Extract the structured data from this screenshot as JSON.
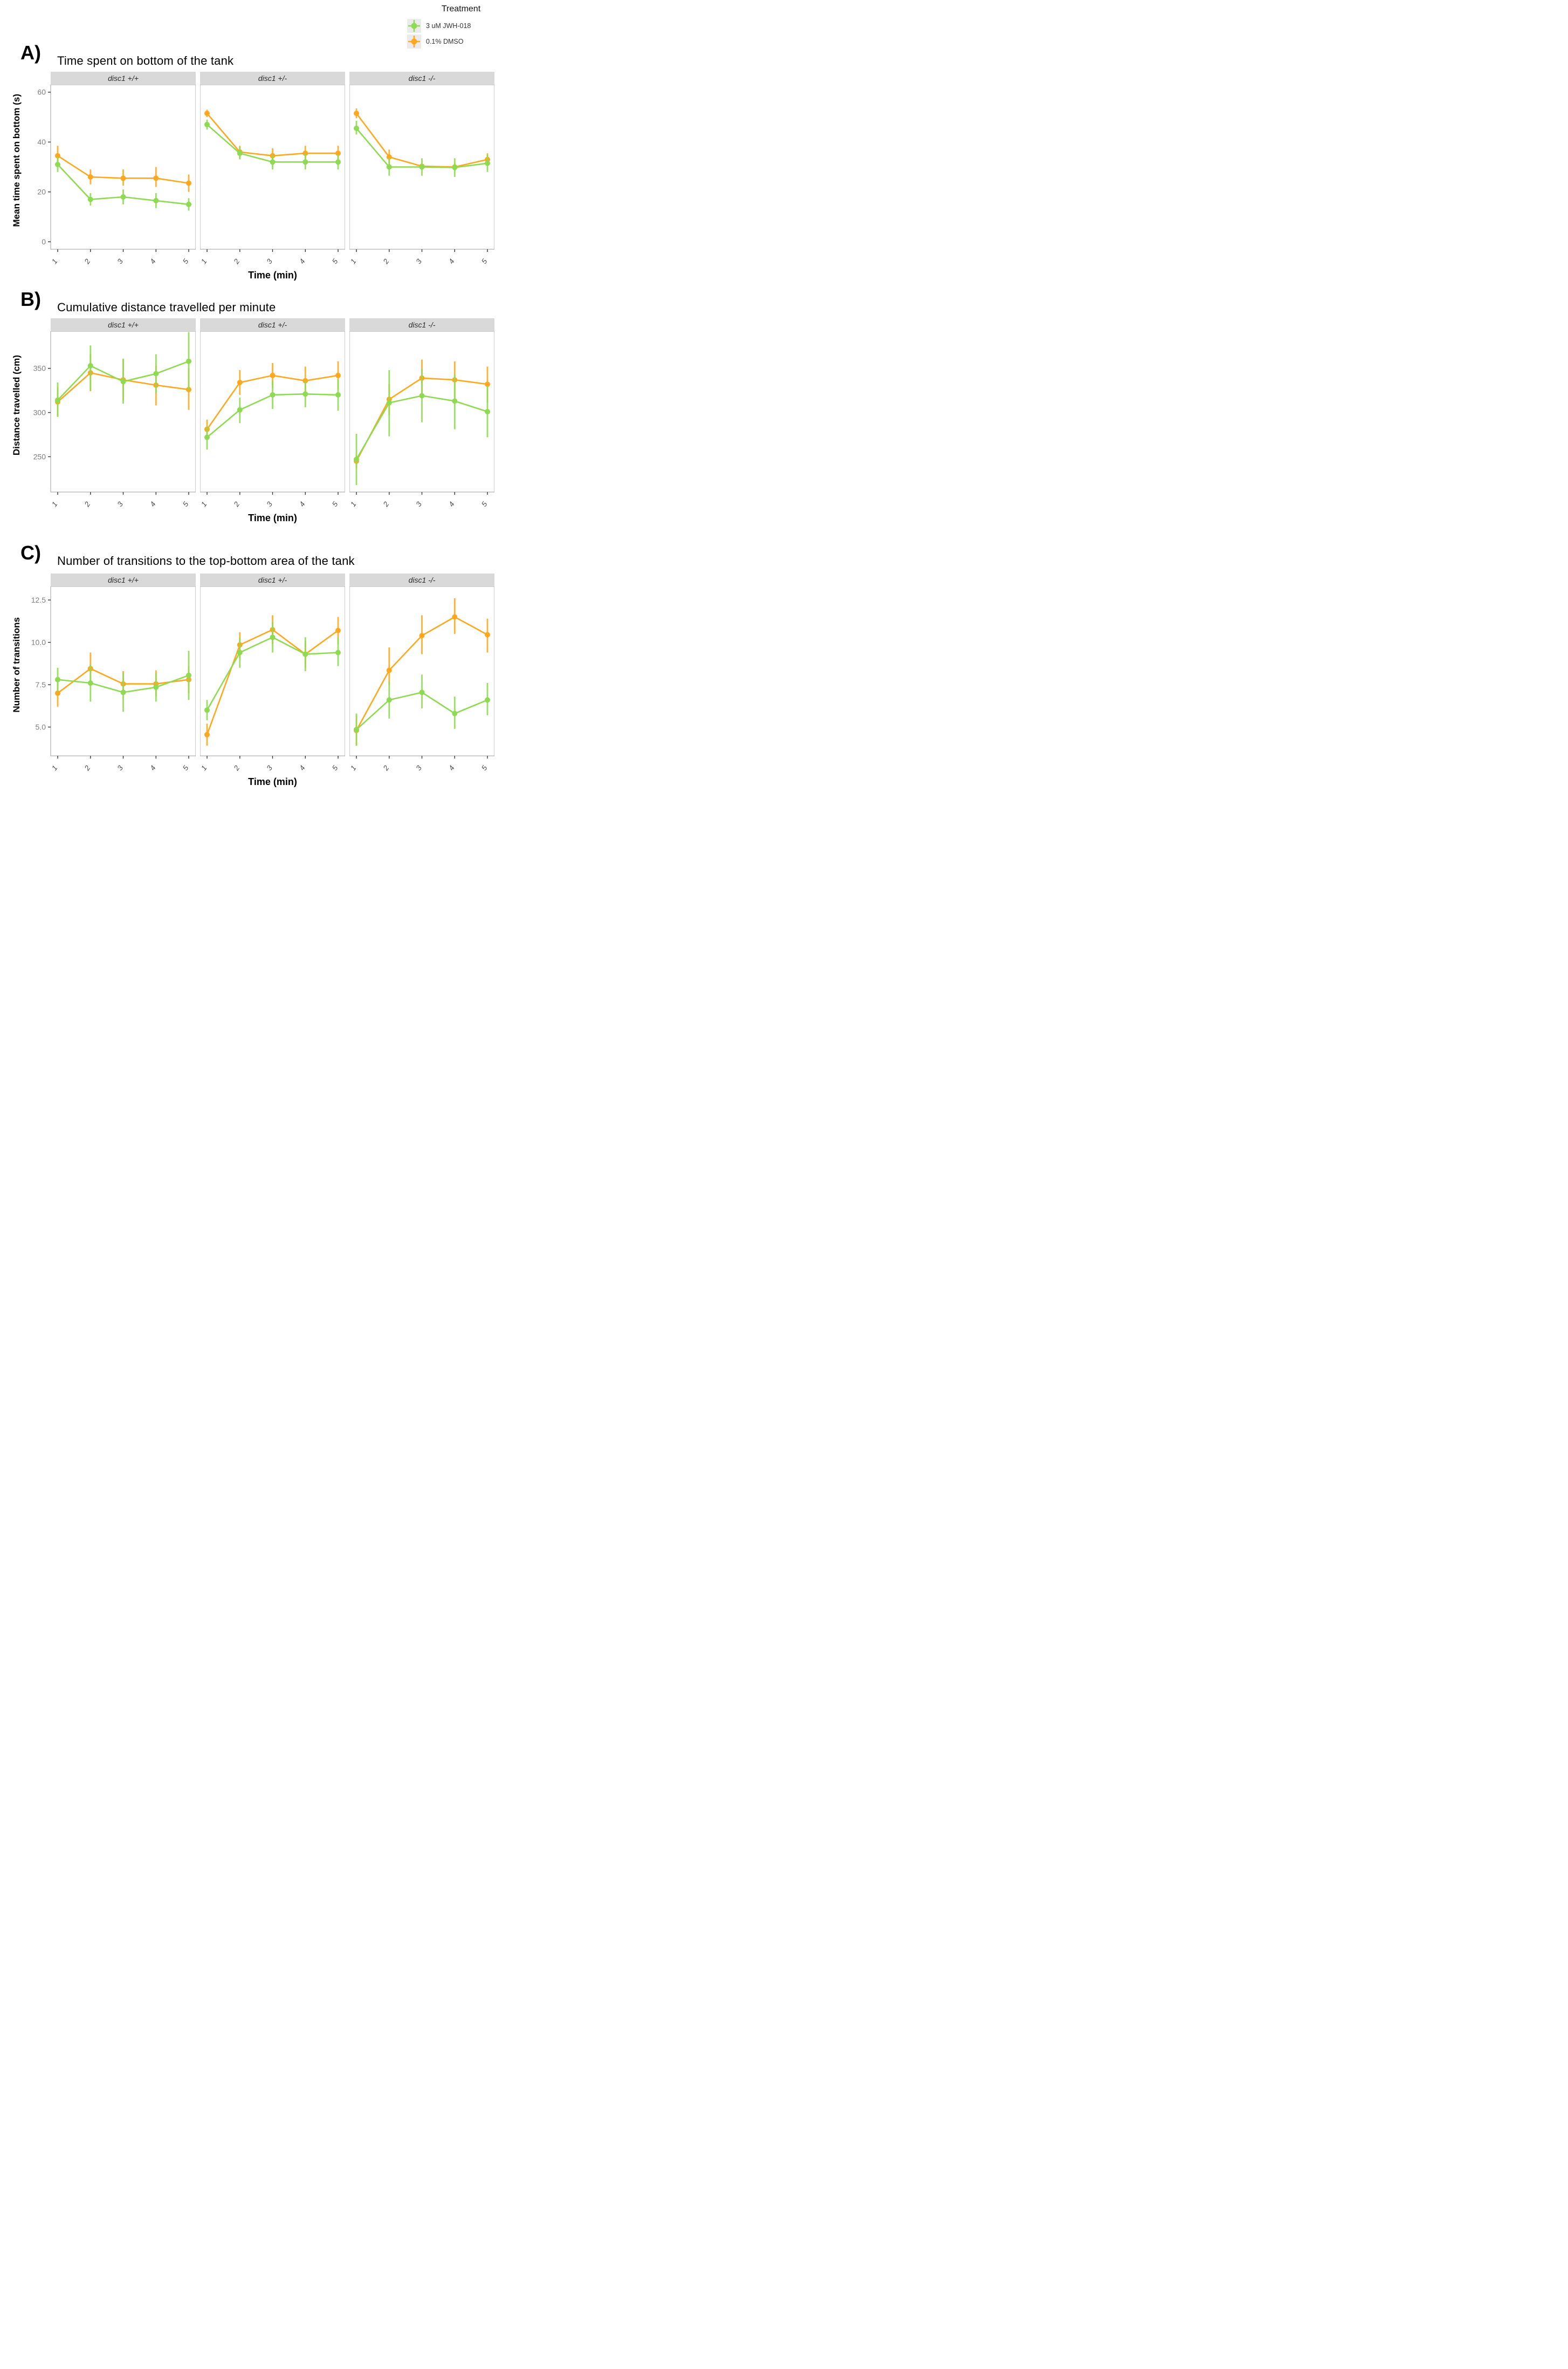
{
  "figure": {
    "legend": {
      "title": "Treatment",
      "items": [
        {
          "label": "3 uM JWH-018",
          "color_key": "green"
        },
        {
          "label": "0.1% DMSO",
          "color_key": "orange"
        }
      ]
    },
    "colors": {
      "green": "#8edb52",
      "orange": "#ffa81e",
      "strip_bg": "#d9d9d9",
      "panel_border": "#b3b3b3",
      "y_tick_text": "#7f7f7f",
      "x_tick_text": "#4d4d4d",
      "tick_mark": "#333333",
      "legend_key_bg": "#ebebeb"
    }
  },
  "chart_data": [
    {
      "type": "line",
      "panel_label": "A)",
      "title": "Time spent on bottom of the tank",
      "ylabel": "Mean time spent on bottom (s)",
      "xlabel": "Time (min)",
      "x": [
        1,
        2,
        3,
        4,
        5
      ],
      "x_tick_labels": [
        "1",
        "2",
        "3",
        "4",
        "5"
      ],
      "yticks": [
        0,
        20,
        40,
        60
      ],
      "ytick_labels": [
        "0",
        "20",
        "40",
        "60"
      ],
      "ylim": [
        -3,
        63
      ],
      "grid": false,
      "legend_position": "top-right",
      "facets": [
        {
          "label": "disc1 +/+",
          "series": [
            {
              "name": "0.1% DMSO",
              "color_key": "orange",
              "y": [
                34.5,
                26,
                25.5,
                25.5,
                23.5
              ],
              "ylo": [
                31,
                23,
                22.5,
                22,
                20
              ],
              "yhi": [
                38.5,
                29,
                29,
                30,
                27
              ]
            },
            {
              "name": "3 uM JWH-018",
              "color_key": "green",
              "y": [
                31,
                17,
                18,
                16.5,
                15
              ],
              "ylo": [
                28,
                14.5,
                15,
                13.5,
                12.5
              ],
              "yhi": [
                34,
                19.5,
                21,
                19.5,
                17.5
              ]
            }
          ]
        },
        {
          "label": "disc1 +/-",
          "series": [
            {
              "name": "0.1% DMSO",
              "color_key": "orange",
              "y": [
                51.5,
                36,
                34.5,
                35.5,
                35.5
              ],
              "ylo": [
                50,
                33.5,
                31.5,
                32.5,
                32.5
              ],
              "yhi": [
                53,
                38.5,
                37.5,
                38.5,
                38.5
              ]
            },
            {
              "name": "3 uM JWH-018",
              "color_key": "green",
              "y": [
                47,
                35.5,
                32,
                32,
                32
              ],
              "ylo": [
                45,
                33,
                29,
                29,
                29
              ],
              "yhi": [
                49,
                38,
                35,
                35.5,
                35
              ]
            }
          ]
        },
        {
          "label": "disc1 -/-",
          "series": [
            {
              "name": "0.1% DMSO",
              "color_key": "orange",
              "y": [
                51.5,
                34,
                30.3,
                30,
                33
              ],
              "ylo": [
                49.5,
                31,
                29,
                28.5,
                30.5
              ],
              "yhi": [
                53.5,
                37,
                31.5,
                31.5,
                35.5
              ]
            },
            {
              "name": "3 uM JWH-018",
              "color_key": "green",
              "y": [
                45.5,
                30,
                30,
                29.8,
                31.5
              ],
              "ylo": [
                43,
                26.5,
                26.5,
                26,
                28
              ],
              "yhi": [
                48.5,
                33.5,
                33.5,
                33.5,
                35
              ]
            }
          ]
        }
      ]
    },
    {
      "type": "line",
      "panel_label": "B)",
      "title": "Cumulative distance travelled per minute",
      "ylabel": "Distance travelled (cm)",
      "xlabel": "Time (min)",
      "x": [
        1,
        2,
        3,
        4,
        5
      ],
      "x_tick_labels": [
        "1",
        "2",
        "3",
        "4",
        "5"
      ],
      "yticks": [
        250,
        300,
        350
      ],
      "ytick_labels": [
        "250",
        "300",
        "350"
      ],
      "ylim": [
        210,
        392
      ],
      "grid": false,
      "facets": [
        {
          "label": "disc1 +/+",
          "series": [
            {
              "name": "0.1% DMSO",
              "color_key": "orange",
              "y": [
                312,
                345,
                337,
                331,
                326
              ],
              "ylo": [
                296,
                324,
                314,
                308,
                303
              ],
              "yhi": [
                329,
                366,
                360,
                353,
                350
              ]
            },
            {
              "name": "3 uM JWH-018",
              "color_key": "green",
              "y": [
                314,
                353,
                335,
                344,
                358
              ],
              "ylo": [
                295,
                325,
                310,
                322,
                325
              ],
              "yhi": [
                334,
                376,
                361,
                366,
                391
              ]
            }
          ]
        },
        {
          "label": "disc1 +/-",
          "series": [
            {
              "name": "0.1% DMSO",
              "color_key": "orange",
              "y": [
                281,
                334,
                342,
                336,
                342
              ],
              "ylo": [
                270,
                320,
                328,
                322,
                326
              ],
              "yhi": [
                292,
                348,
                356,
                352,
                358
              ]
            },
            {
              "name": "3 uM JWH-018",
              "color_key": "green",
              "y": [
                272,
                303,
                320,
                321,
                320
              ],
              "ylo": [
                258,
                288,
                304,
                306,
                302
              ],
              "yhi": [
                285,
                317,
                336,
                336,
                338
              ]
            }
          ]
        },
        {
          "label": "disc1 -/-",
          "series": [
            {
              "name": "0.1% DMSO",
              "color_key": "orange",
              "y": [
                245,
                315,
                339,
                337,
                332
              ],
              "ylo": [
                237,
                297,
                318,
                316,
                311
              ],
              "yhi": [
                252,
                332,
                360,
                358,
                352
              ]
            },
            {
              "name": "3 uM JWH-018",
              "color_key": "green",
              "y": [
                247,
                311,
                319,
                313,
                301
              ],
              "ylo": [
                218,
                273,
                289,
                281,
                272
              ],
              "yhi": [
                276,
                348,
                349,
                343,
                330
              ]
            }
          ]
        }
      ]
    },
    {
      "type": "line",
      "panel_label": "C)",
      "title": "Number of transitions to the top-bottom area of the tank",
      "ylabel": "Number of transitions",
      "xlabel": "Time (min)",
      "x": [
        1,
        2,
        3,
        4,
        5
      ],
      "x_tick_labels": [
        "1",
        "2",
        "3",
        "4",
        "5"
      ],
      "yticks": [
        5.0,
        7.5,
        10.0,
        12.5
      ],
      "ytick_labels": [
        "5.0",
        "7.5",
        "10.0",
        "12.5"
      ],
      "ylim": [
        3.3,
        13.3
      ],
      "grid": false,
      "facets": [
        {
          "label": "disc1 +/+",
          "series": [
            {
              "name": "0.1% DMSO",
              "color_key": "orange",
              "y": [
                7.0,
                8.45,
                7.55,
                7.55,
                7.8
              ],
              "ylo": [
                6.2,
                7.5,
                6.9,
                6.8,
                7.0
              ],
              "yhi": [
                7.8,
                9.4,
                8.3,
                8.35,
                8.6
              ]
            },
            {
              "name": "3 uM JWH-018",
              "color_key": "green",
              "y": [
                7.8,
                7.6,
                7.05,
                7.35,
                8.05
              ],
              "ylo": [
                7.1,
                6.5,
                5.9,
                6.5,
                6.6
              ],
              "yhi": [
                8.5,
                8.7,
                8.2,
                8.2,
                9.5
              ]
            }
          ]
        },
        {
          "label": "disc1 +/-",
          "series": [
            {
              "name": "0.1% DMSO",
              "color_key": "orange",
              "y": [
                4.55,
                9.85,
                10.75,
                9.3,
                10.7
              ],
              "ylo": [
                3.9,
                9.1,
                9.9,
                8.5,
                9.9
              ],
              "yhi": [
                5.2,
                10.6,
                11.6,
                10.1,
                11.5
              ]
            },
            {
              "name": "3 uM JWH-018",
              "color_key": "green",
              "y": [
                6.0,
                9.4,
                10.3,
                9.3,
                9.4
              ],
              "ylo": [
                5.4,
                8.5,
                9.4,
                8.3,
                8.6
              ],
              "yhi": [
                6.6,
                10.3,
                11.2,
                10.3,
                10.3
              ]
            }
          ]
        },
        {
          "label": "disc1 -/-",
          "series": [
            {
              "name": "0.1% DMSO",
              "color_key": "orange",
              "y": [
                4.8,
                8.35,
                10.4,
                11.5,
                10.45
              ],
              "ylo": [
                3.9,
                7.5,
                9.3,
                10.5,
                9.4
              ],
              "yhi": [
                5.7,
                9.7,
                11.6,
                12.6,
                11.4
              ]
            },
            {
              "name": "3 uM JWH-018",
              "color_key": "green",
              "y": [
                4.85,
                6.6,
                7.05,
                5.8,
                6.6
              ],
              "ylo": [
                3.9,
                5.5,
                6.1,
                4.9,
                5.7
              ],
              "yhi": [
                5.8,
                7.7,
                8.1,
                6.8,
                7.6
              ]
            }
          ]
        }
      ]
    }
  ]
}
